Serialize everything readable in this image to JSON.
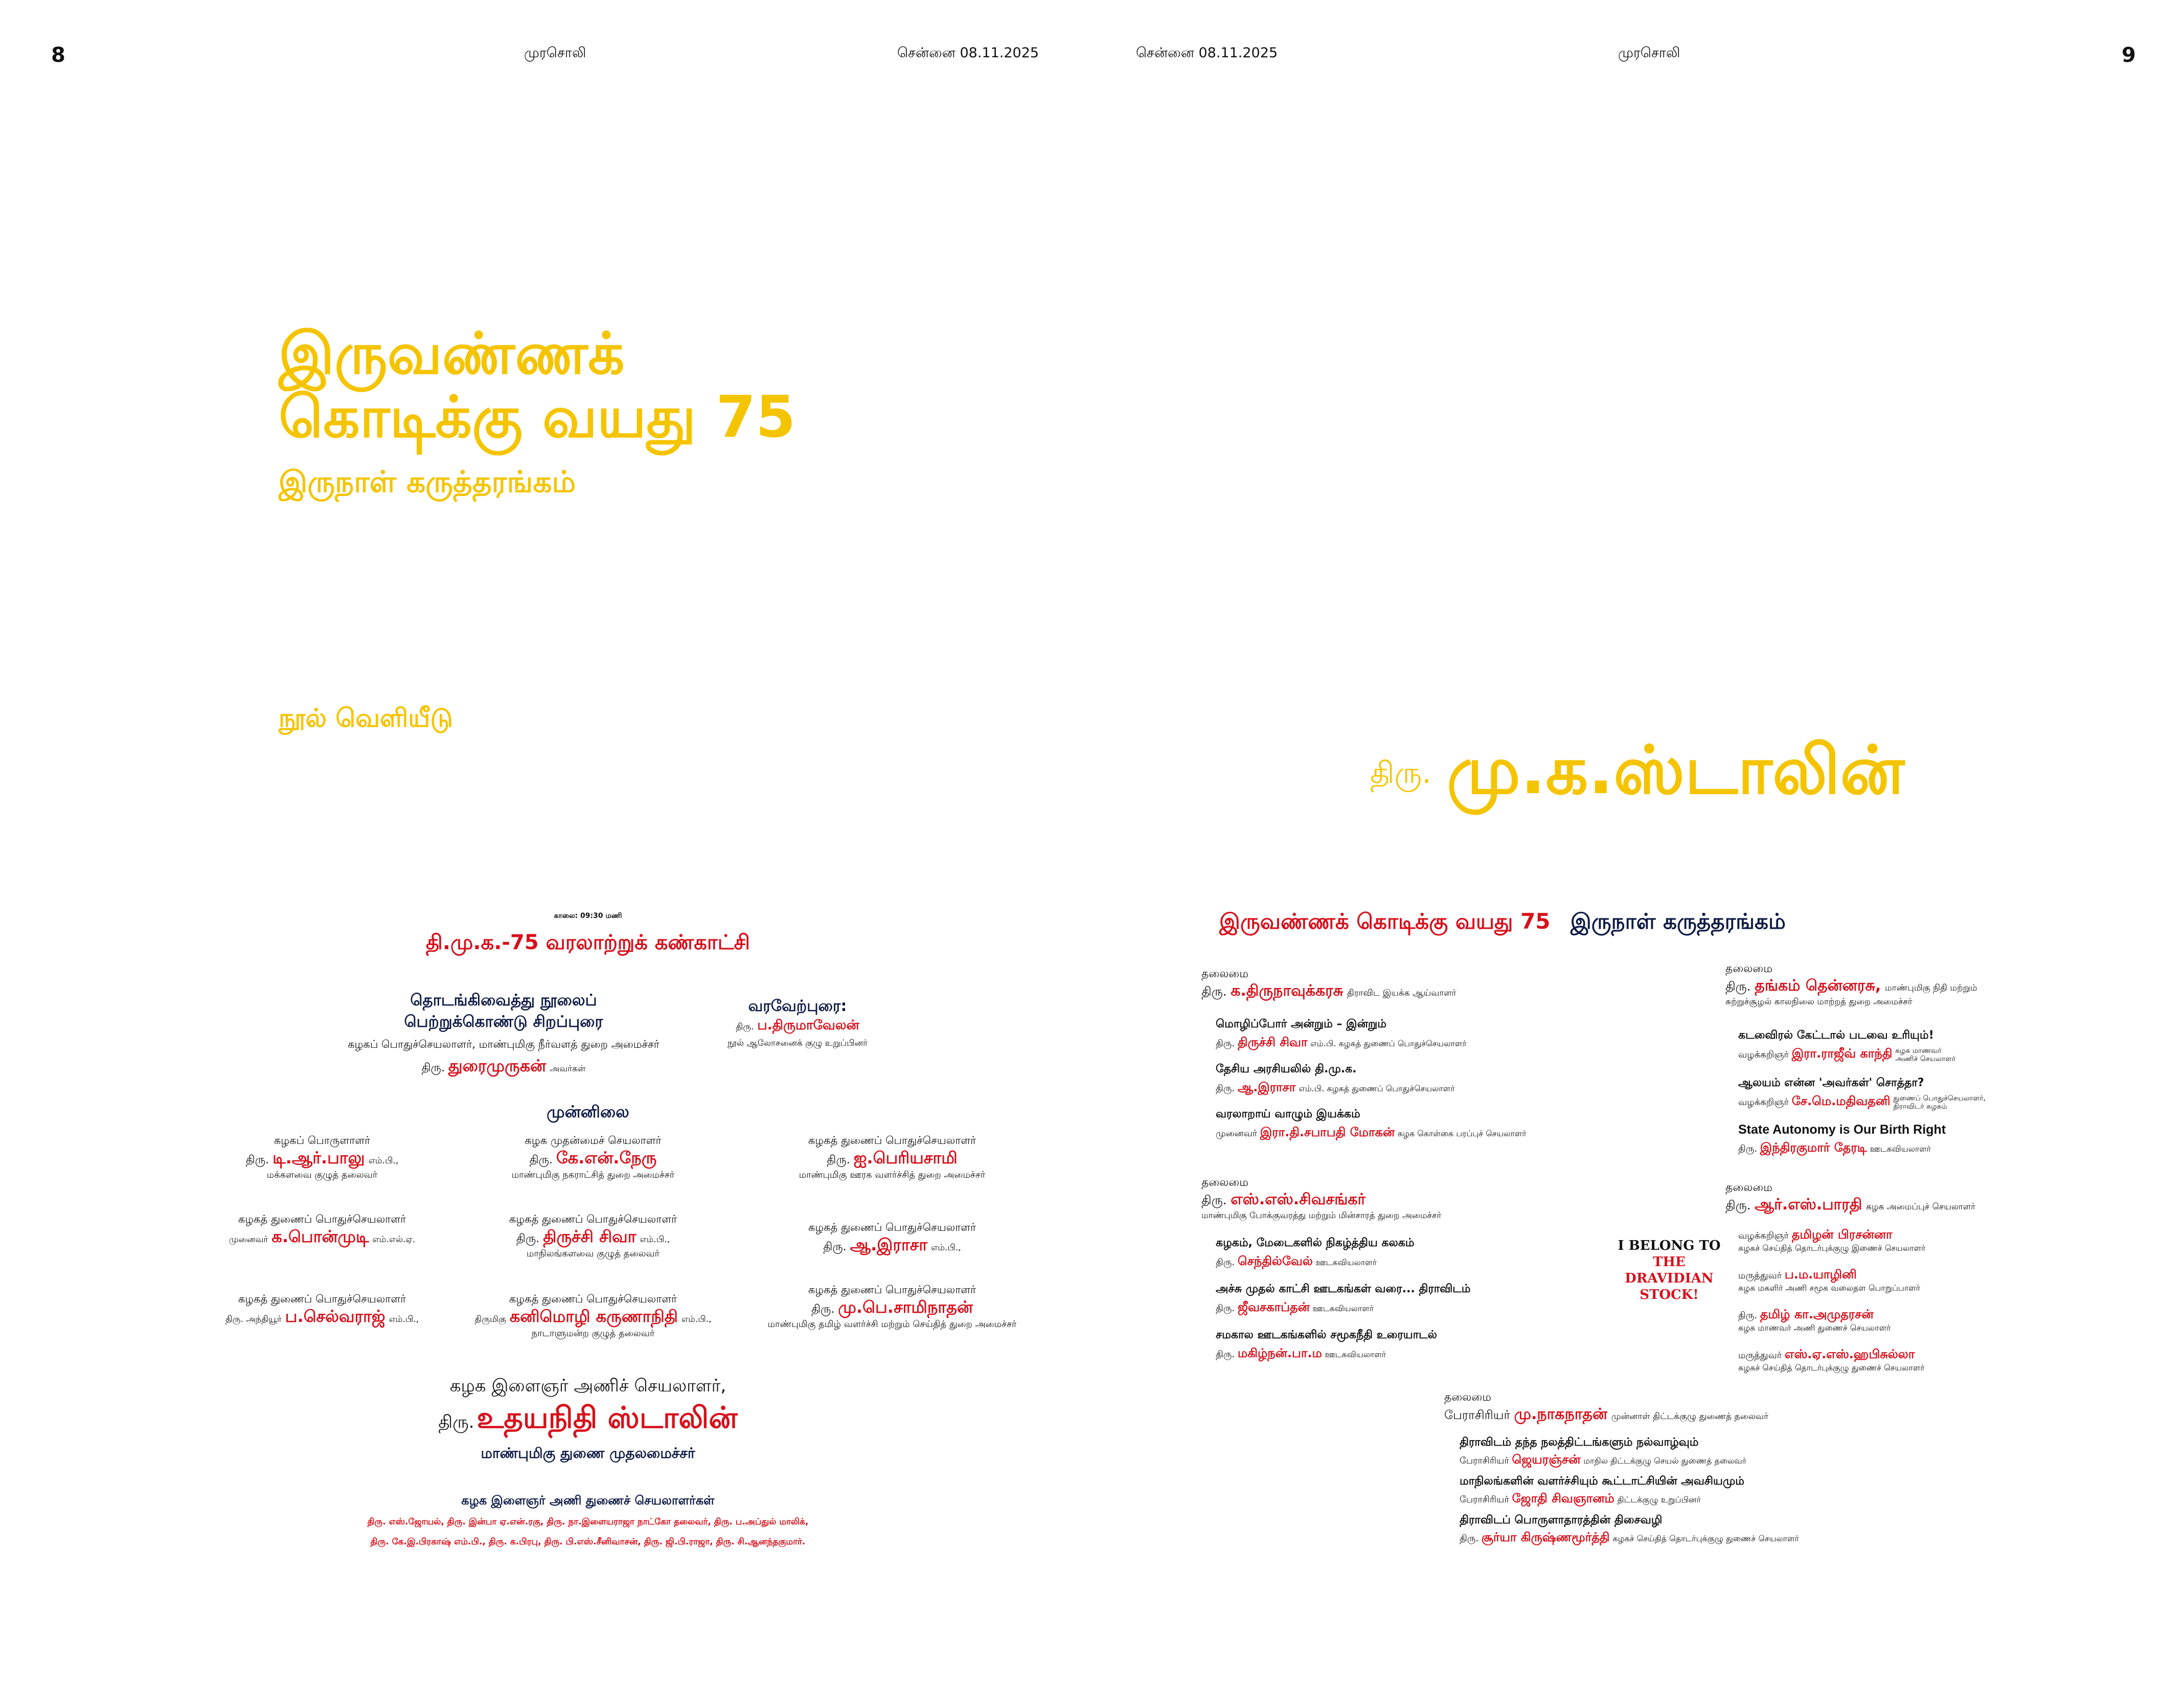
{
  "header": {
    "page_left": "8",
    "page_right": "9",
    "paper_left": "முரசொலி",
    "date_left": "சென்னை 08.11.2025",
    "date_right": "சென்னை 08.11.2025",
    "paper_right": "முரசொலி"
  },
  "hero": {
    "title_line1": "இருவண்ணக்",
    "title_line2": "கொடிக்கு வயது 75",
    "subtitle": "இருநாள் கருத்தரங்கம்",
    "release_label": "நூல் வெளியீடு",
    "release_prefix": "திரு.",
    "release_name": "மு.க.ஸ்டாலின்"
  },
  "left": {
    "time": "காலை: 09:30 மணி",
    "exhibition": "தி.மு.க.-75  வரலாற்றுக் கண்காட்சி",
    "opening_title1": "தொடங்கிவைத்து  நூலைப்",
    "opening_title2": "பெற்றுக்கொண்டு  சிறப்புரை",
    "opening_role": "கழகப் பொதுச்செயலாளர், மாண்புமிகு நீர்வளத் துறை அமைச்சர்",
    "opening_prefix": "திரு.",
    "opening_name": "துரைமுருகன்",
    "opening_suffix": "அவர்கள்",
    "welcome_title": "வரவேற்புரை:",
    "welcome_prefix": "திரு.",
    "welcome_name": "ப.திருமாவேலன்",
    "welcome_role": "நூல் ஆலோசனைக் குழு உறுப்பினர்",
    "presence": "முன்னிலை",
    "people": [
      {
        "role": "கழகப் பொருளாளர்",
        "prefix": "திரு.",
        "name": "டி.ஆர்.பாலு",
        "suffix": "எம்.பி.,",
        "sub": "மக்களவை குழுத் தலைவர்"
      },
      {
        "role": "கழக முதன்மைச் செயலாளர்",
        "prefix": "திரு.",
        "name": "கே.என்.நேரு",
        "suffix": "",
        "sub": "மாண்புமிகு நகராட்சித் துறை அமைச்சர்"
      },
      {
        "role": "கழகத் துணைப் பொதுச்செயலாளர்",
        "prefix": "திரு.",
        "name": "ஐ.பெரியசாமி",
        "suffix": "",
        "sub": "மாண்புமிகு ஊரக வளர்ச்சித் துறை அமைச்சர்"
      },
      {
        "role": "கழகத் துணைப் பொதுச்செயலாளர்",
        "prefix": "முனைவர்",
        "name": "க.பொன்முடி",
        "suffix": "எம்.எல்.ஏ.",
        "sub": ""
      },
      {
        "role": "கழகத் துணைப் பொதுச்செயலாளர்",
        "prefix": "திரு.",
        "name": "திருச்சி  சிவா",
        "suffix": "எம்.பி.,",
        "sub": "மாநிலங்களவை குழுத் தலைவர்"
      },
      {
        "role": "கழகத் துணைப் பொதுச்செயலாளர்",
        "prefix": "திரு.",
        "name": "ஆ.இராசா",
        "suffix": "எம்.பி.,",
        "sub": ""
      },
      {
        "role": "கழகத் துணைப் பொதுச்செயலாளர்",
        "prefix": "திரு.  அந்தியூர்",
        "name": "ப.செல்வராஜ்",
        "suffix": "எம்.பி.,",
        "sub": ""
      },
      {
        "role": "கழகத் துணைப் பொதுச்செயலாளர்",
        "prefix": "திருமிகு",
        "name": "கனிமொழி கருணாநிதி",
        "suffix": "எம்.பி.,",
        "sub": "நாடாளுமன்ற குழுத் தலைவர்"
      },
      {
        "role": "கழகத் துணைப் பொதுச்செயலாளர்",
        "prefix": "திரு.",
        "name": "மு.பெ.சாமிநாதன்",
        "suffix": "",
        "sub": "மாண்புமிகு தமிழ் வளர்ச்சி மற்றும் செய்தித் துறை அமைச்சர்"
      }
    ],
    "youth_role": "கழக இளைஞர் அணிச் செயலாளர்,",
    "youth_prefix": "திரு.",
    "youth_name": "உதயநிதி ஸ்டாலின்",
    "youth_sub": "மாண்புமிகு துணை முதலமைச்சர்",
    "youth_deputies_title": "கழக இளைஞர் அணி துணைச் செயலாளர்கள்",
    "youth_deputies_line1": "திரு. எஸ்.ஜோயல், திரு. இன்பா ஏ.என்.ரகு, திரு. நா.இளையராஜா நாட்கோ தலைவர், திரு. ப.அப்துல் மாலிக்,",
    "youth_deputies_line2": "திரு. கே.இ.பிரகாஷ் எம்.பி., திரு. க.பிரபு, திரு. பி.எஸ்.சீனிவாசன், திரு. ஜி.பி.ராஜா, திரு. சி.ஆனந்தகுமார்."
  },
  "right": {
    "heading_red": "இருவண்ணக் கொடிக்கு வயது 75",
    "heading_navy": "இருநாள் கருத்தரங்கம்",
    "chair_label": "தலைமை",
    "s1": {
      "prefix": "திரு.",
      "name": "க.திருநாவுக்கரசு",
      "desc": "திராவிட இயக்க ஆய்வாளர்",
      "talks": [
        {
          "topic": "மொழிப்போர் அன்றும் – இன்றும்",
          "prefix": "திரு.",
          "name": "திருச்சி சிவா",
          "desc": "எம்.பி. கழகத் துணைப் பொதுச்செயலாளர்"
        },
        {
          "topic": "தேசிய அரசியலில் தி.மு.க.",
          "prefix": "திரு.",
          "name": "ஆ.இராசா",
          "desc": "எம்.பி. கழகத் துணைப் பொதுச்செயலாளர்"
        },
        {
          "topic": "வரலாறாய் வாழும் இயக்கம்",
          "prefix": "முனைவர்",
          "name": "இரா.தி.சபாபதி மோகன்",
          "desc": "கழக கொள்கை பரப்புச் செயலாளர்"
        }
      ]
    },
    "s2": {
      "prefix": "திரு.",
      "name": "தங்கம் தென்னரசு,",
      "desc1": "மாண்புமிகு நிதி மற்றும்",
      "desc2": "சுற்றுச்சூழல் காலநிலை மாற்றத் துறை அமைச்சர்",
      "talks": [
        {
          "topic": "கடவைிரல் கேட்டால் படவை உரியும்!",
          "prefix": "வழக்கறிஞர்",
          "name": "இரா.ராஜீவ் காந்தி",
          "desc1": "கழக மாணவர்",
          "desc2": "அணிச் செயலாளர்"
        },
        {
          "topic": "ஆலயம் என்ன 'அவர்கள்' சொத்தா?",
          "prefix": "வழக்கறிஞர்",
          "name": "சே.மெ.மதிவதனி",
          "desc1": "துணைப் பொதுச்செயலாளர்,",
          "desc2": "திராவிடர் கழகம்"
        },
        {
          "topic": "State Autonomy is Our Birth Right",
          "prefix": "திரு.",
          "name": "இந்திரகுமார் தேரடி",
          "desc": "ஊடகவியலாளர்"
        }
      ]
    },
    "s3": {
      "prefix": "திரு.",
      "name": "எஸ்.எஸ்.சிவசங்கர்",
      "desc": "மாண்புமிகு போக்குவரத்து மற்றும் மின்சாரத் துறை அமைச்சர்",
      "talks": [
        {
          "topic": "கழகம், மேடைகளில் நிகழ்த்திய கலகம்",
          "prefix": "திரு.",
          "name": "செந்தில்வேல்",
          "desc": "ஊடகவியலாளர்"
        },
        {
          "topic": "அச்சு முதல் காட்சி  ஊடகங்கள் வரை...  திராவிடம்",
          "prefix": "திரு.",
          "name": "ஜீவசகாப்தன்",
          "desc": "ஊடகவியலாளர்"
        },
        {
          "topic": "சமகால ஊடகங்களில் சமூகநீதி உரையாடல்",
          "prefix": "திரு.",
          "name": "மகிழ்நன்.பா.ம",
          "desc": "ஊடகவியலாளர்"
        }
      ]
    },
    "s4": {
      "prefix": "திரு.",
      "name": "ஆர்.எஸ்.பாரதி",
      "desc": "கழக அமைப்புச் செயலாளர்",
      "talks": [
        {
          "prefix": "வழக்கறிஞர்",
          "name": "தமிழன் பிரசன்னா",
          "desc": "கழகச் செய்தித் தொடர்புக்குழு இணைச் செயலாளர்"
        },
        {
          "prefix": "மருத்துவர்",
          "name": "ப.ம.யாழினி",
          "desc": "கழக மகளிர் அணி சமூக வலைதள பொறுப்பாளர்"
        },
        {
          "prefix": "திரு.",
          "name": "தமிழ் கா.அமுதரசன்",
          "desc": "கழக மாணவர் அணி துணைச் செயலாளர்"
        },
        {
          "prefix": "மருத்துவர்",
          "name": "எஸ்.ஏ.எஸ்.ஹபிசுல்லா",
          "desc": "கழகச் செய்தித் தொடர்புக்குழு துணைச் செயலாளர்"
        }
      ]
    },
    "s5": {
      "prefix": "பேராசிரியர்",
      "name": "மு.நாகநாதன்",
      "desc": "முன்னாள் திட்டக்குழு துணைத் தலைவர்",
      "talks": [
        {
          "topic": "திராவிடம் தந்த நலத்திட்டங்களும் நல்வாழ்வும்",
          "prefix": "பேராசிரியர்",
          "name": "ஜெயரஞ்சன்",
          "desc": "மாநில திட்டக்குழு செயல் துணைத் தலைவர்"
        },
        {
          "topic": "மாநிலங்களின் வளர்ச்சியும் கூட்டாட்சியின் அவசியமும்",
          "prefix": "பேராசிரியர்",
          "name": "ஜோதி சிவஞானம்",
          "desc": "திட்டக்குழு உறுப்பினர்"
        },
        {
          "topic": "திராவிடப் பொருளாதாரத்தின் திசைவழி",
          "prefix": "திரு.",
          "name": "சூர்யா கிருஷ்ணமூர்த்தி",
          "desc": "கழகச் செய்தித் தொடர்புக்குழு துணைச் செயலாளர்"
        }
      ]
    },
    "stock_line1": "I BELONG TO",
    "stock_line2": "THE",
    "stock_line3": "DRAVIDIAN",
    "stock_line4": "STOCK!"
  },
  "colors": {
    "yellow": "#f5c400",
    "red": "#d7101b",
    "navy": "#0e1a45"
  }
}
